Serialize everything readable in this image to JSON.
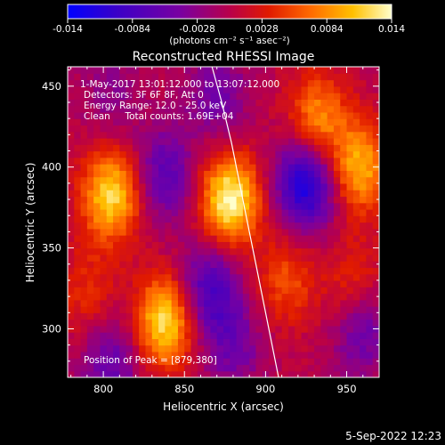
{
  "colorbar": {
    "ticks": [
      "-0.014",
      "-0.0084",
      "-0.0028",
      "0.0028",
      "0.0084",
      "0.014"
    ],
    "tick_values": [
      -0.014,
      -0.0084,
      -0.0028,
      0.0028,
      0.0084,
      0.014
    ],
    "min": -0.014,
    "max": 0.014,
    "units": "(photons cm⁻² s⁻¹ asec⁻²)",
    "colors": [
      "#0000ff",
      "#3a00c8",
      "#7a00a0",
      "#b8004a",
      "#e01a00",
      "#ff6a00",
      "#ffc000",
      "#ffffcc"
    ]
  },
  "chart_data": {
    "type": "heatmap",
    "title": "Reconstructed RHESSI Image",
    "xlabel": "Heliocentric X (arcsec)",
    "ylabel": "Heliocentric Y (arcsec)",
    "xlim": [
      778,
      970
    ],
    "ylim": [
      270,
      462
    ],
    "xticks": [
      800,
      850,
      900,
      950
    ],
    "yticks": [
      300,
      350,
      400,
      450
    ],
    "info": [
      "1-May-2017 13:01:12.000 to 13:07:12.000",
      "Detectors: 3F 6F 8F, Att 0",
      "Energy Range: 12.0 - 25.0 keV",
      "Clean     Total counts: 1.69E+04"
    ],
    "peak_label": "Position of Peak = [879,380]",
    "peak": [
      879,
      380
    ],
    "limb_curve": [
      [
        867,
        462
      ],
      [
        873,
        440
      ],
      [
        879,
        415
      ],
      [
        884,
        390
      ],
      [
        889,
        365
      ],
      [
        894,
        340
      ],
      [
        899,
        315
      ],
      [
        904,
        290
      ],
      [
        908,
        270
      ]
    ],
    "blobs": [
      {
        "x": 805,
        "y": 383,
        "amp": 0.012
      },
      {
        "x": 878,
        "y": 380,
        "amp": 0.014
      },
      {
        "x": 838,
        "y": 305,
        "amp": 0.0125
      },
      {
        "x": 932,
        "y": 430,
        "amp": 0.0085
      },
      {
        "x": 958,
        "y": 400,
        "amp": 0.01
      },
      {
        "x": 913,
        "y": 330,
        "amp": 0.0055
      },
      {
        "x": 790,
        "y": 322,
        "amp": 0.004
      },
      {
        "x": 955,
        "y": 328,
        "amp": 0.0045
      },
      {
        "x": 838,
        "y": 395,
        "amp": -0.007
      },
      {
        "x": 925,
        "y": 390,
        "amp": -0.0125
      },
      {
        "x": 865,
        "y": 325,
        "amp": -0.0085
      },
      {
        "x": 805,
        "y": 280,
        "amp": -0.006
      },
      {
        "x": 870,
        "y": 445,
        "amp": -0.005
      },
      {
        "x": 880,
        "y": 290,
        "amp": -0.005
      },
      {
        "x": 960,
        "y": 300,
        "amp": -0.006
      },
      {
        "x": 805,
        "y": 445,
        "amp": -0.003
      }
    ]
  },
  "footer": {
    "timestamp": "5-Sep-2022 12:23"
  }
}
